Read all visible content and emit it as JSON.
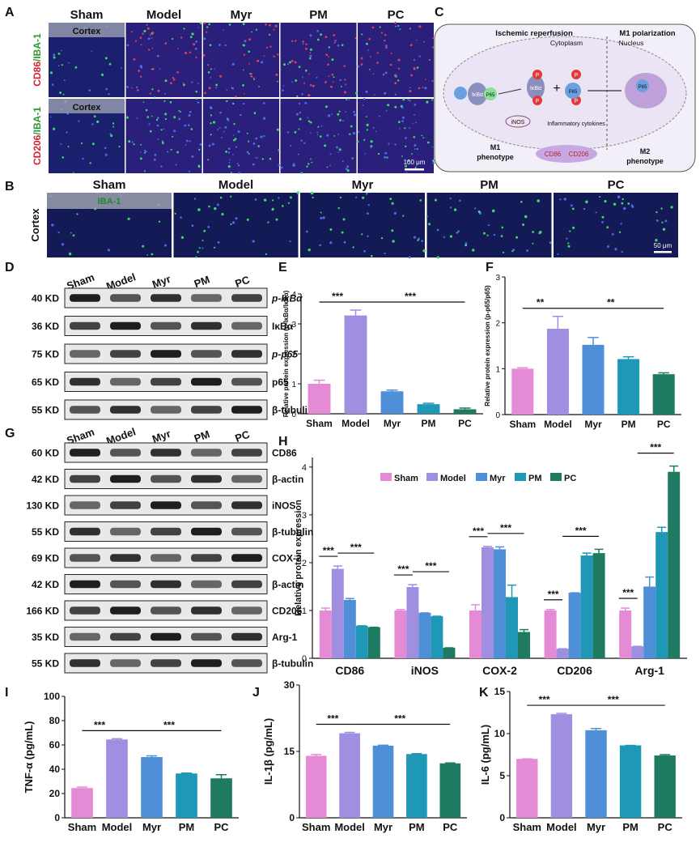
{
  "panel_letters": [
    "A",
    "B",
    "C",
    "D",
    "E",
    "F",
    "G",
    "H",
    "I",
    "J",
    "K"
  ],
  "groups": [
    "Sham",
    "Model",
    "Myr",
    "PM",
    "PC"
  ],
  "colors": {
    "Sham": "#e58bd6",
    "Model": "#a08ee0",
    "Myr": "#4e8fd8",
    "PM": "#1f98b8",
    "PC": "#1f7a62",
    "sig": "#111111"
  },
  "panelA": {
    "row_labels": [
      {
        "a": "CD86",
        "b": "/IBA-1"
      },
      {
        "a": "CD206",
        "b": "/IBA-1"
      }
    ],
    "region": "Cortex",
    "scale": "100 μm"
  },
  "panelB": {
    "row_label": "Cortex",
    "stain": "IBA-1",
    "scale": "50 μm"
  },
  "panelC": {
    "header_left": "Ischemic reperfusion",
    "header_right": "M1 polarization",
    "sub_left": "Cytoplasm",
    "sub_right": "Nucleus",
    "nodes": {
      "ikba": "IκBα",
      "p65": "P65",
      "p": "P",
      "rnos": "iNOS",
      "cyto": "Inflammatory cytokines",
      "cd86": "CD86",
      "cd206": "CD206",
      "plus": "+"
    },
    "m1": "M1 phenotype",
    "m2": "M2 phenotype"
  },
  "panelD": {
    "lanes": [
      "Sham",
      "Model",
      "Myr",
      "PM",
      "PC"
    ],
    "rows": [
      {
        "kd": "40 KD",
        "name": "p-IκBα"
      },
      {
        "kd": "36 KD",
        "name": "IκBα"
      },
      {
        "kd": "75 KD",
        "name": "p-p65"
      },
      {
        "kd": "65 KD",
        "name": "p65"
      },
      {
        "kd": "55 KD",
        "name": "β-tubulin"
      }
    ]
  },
  "panelG": {
    "lanes": [
      "Sham",
      "Model",
      "Myr",
      "PM",
      "PC"
    ],
    "rows": [
      {
        "kd": "60 KD",
        "name": "CD86"
      },
      {
        "kd": "42 KD",
        "name": "β-actin"
      },
      {
        "kd": "130 KD",
        "name": "iNOS"
      },
      {
        "kd": "55 KD",
        "name": "β-tubulin"
      },
      {
        "kd": "69 KD",
        "name": "COX-2"
      },
      {
        "kd": "42 KD",
        "name": "β-actin"
      },
      {
        "kd": "166 KD",
        "name": "CD206"
      },
      {
        "kd": "35 KD",
        "name": "Arg-1"
      },
      {
        "kd": "55 KD",
        "name": "β-tubulin"
      }
    ]
  },
  "chart_data": [
    {
      "panel": "E",
      "type": "bar",
      "categories": [
        "Sham",
        "Model",
        "Myr",
        "PM",
        "PC"
      ],
      "values": [
        1.0,
        3.28,
        0.75,
        0.32,
        0.15
      ],
      "errors": [
        0.12,
        0.18,
        0.04,
        0.03,
        0.04
      ],
      "ylabel": "Relative protein expression (p-IκBα/IκBα)",
      "ylim": [
        0,
        4
      ],
      "yticks": [
        0,
        1,
        2,
        3,
        4
      ],
      "sig": [
        {
          "from": 0,
          "to": 1,
          "text": "***"
        },
        {
          "from": 1,
          "to": 4,
          "text": "***"
        }
      ]
    },
    {
      "panel": "F",
      "type": "bar",
      "categories": [
        "Sham",
        "Model",
        "Myr",
        "PM",
        "PC"
      ],
      "values": [
        1.0,
        1.87,
        1.52,
        1.21,
        0.88
      ],
      "errors": [
        0.02,
        0.27,
        0.16,
        0.05,
        0.03
      ],
      "ylabel": "Relative protein expression (p-p65/p65)",
      "ylim": [
        0,
        3
      ],
      "yticks": [
        0,
        1,
        2,
        3
      ],
      "sig": [
        {
          "from": 0,
          "to": 1,
          "text": "**"
        },
        {
          "from": 1,
          "to": 4,
          "text": "**"
        }
      ]
    },
    {
      "panel": "H",
      "type": "bar",
      "categories": [
        "CD86",
        "iNOS",
        "COX-2",
        "CD206",
        "Arg-1"
      ],
      "ylabel": "Relative protein expression",
      "ylim": [
        0,
        4.2
      ],
      "yticks": [
        0,
        1,
        2,
        3,
        4
      ],
      "series": [
        {
          "name": "Sham",
          "values": [
            1.0,
            1.0,
            1.0,
            1.0,
            1.0
          ],
          "errors": [
            0.05,
            0.02,
            0.12,
            0.02,
            0.05
          ]
        },
        {
          "name": "Model",
          "values": [
            1.87,
            1.49,
            2.32,
            0.2,
            0.25
          ],
          "errors": [
            0.06,
            0.05,
            0.02,
            0.0,
            0.0
          ]
        },
        {
          "name": "Myr",
          "values": [
            1.22,
            0.95,
            2.28,
            1.37,
            1.5
          ],
          "errors": [
            0.03,
            0.0,
            0.05,
            0.0,
            0.2
          ]
        },
        {
          "name": "PM",
          "values": [
            0.68,
            0.88,
            1.28,
            2.15,
            2.64
          ],
          "errors": [
            0.0,
            0.0,
            0.25,
            0.05,
            0.1
          ]
        },
        {
          "name": "PC",
          "values": [
            0.65,
            0.22,
            0.55,
            2.2,
            3.9
          ],
          "errors": [
            0.0,
            0.0,
            0.05,
            0.08,
            0.12
          ]
        }
      ],
      "sig": [
        {
          "cat": 0,
          "pairs": [
            [
              0,
              1
            ],
            [
              1,
              4
            ]
          ]
        },
        {
          "cat": 1,
          "pairs": [
            [
              0,
              1
            ],
            [
              1,
              4
            ]
          ]
        },
        {
          "cat": 2,
          "pairs": [
            [
              0,
              1
            ],
            [
              1,
              4
            ]
          ]
        },
        {
          "cat": 3,
          "pairs": [
            [
              0,
              0
            ],
            [
              1,
              4
            ]
          ]
        },
        {
          "cat": 4,
          "pairs": [
            [
              0,
              0
            ],
            [
              1,
              4
            ]
          ]
        }
      ],
      "sig_text": "***"
    },
    {
      "panel": "I",
      "type": "bar",
      "categories": [
        "Sham",
        "Model",
        "Myr",
        "PM",
        "PC"
      ],
      "values": [
        24.5,
        64.5,
        50.0,
        36.5,
        32.5
      ],
      "errors": [
        0.8,
        0.6,
        1.0,
        0.3,
        3.0
      ],
      "ylabel": "TNF-α (pg/mL)",
      "ylim": [
        0,
        100
      ],
      "yticks": [
        0,
        20,
        40,
        60,
        80,
        100
      ],
      "sig": [
        {
          "from": 0,
          "to": 1,
          "text": "***"
        },
        {
          "from": 1,
          "to": 4,
          "text": "***"
        }
      ]
    },
    {
      "panel": "J",
      "type": "bar",
      "categories": [
        "Sham",
        "Model",
        "Myr",
        "PM",
        "PC"
      ],
      "values": [
        14.0,
        19.1,
        16.3,
        14.4,
        12.3
      ],
      "errors": [
        0.3,
        0.2,
        0.1,
        0.1,
        0.1
      ],
      "ylabel": "IL-1β (pg/mL)",
      "ylim": [
        0,
        30
      ],
      "yticks": [
        0,
        15,
        30
      ],
      "sig": [
        {
          "from": 0,
          "to": 1,
          "text": "***"
        },
        {
          "from": 1,
          "to": 4,
          "text": "***"
        }
      ]
    },
    {
      "panel": "K",
      "type": "bar",
      "categories": [
        "Sham",
        "Model",
        "Myr",
        "PM",
        "PC"
      ],
      "values": [
        7.0,
        12.3,
        10.4,
        8.6,
        7.4
      ],
      "errors": [
        0.0,
        0.1,
        0.2,
        0.0,
        0.1
      ],
      "ylabel": "IL-6 (pg/mL)",
      "ylim": [
        0,
        15
      ],
      "yticks": [
        0,
        5,
        10,
        15
      ],
      "sig": [
        {
          "from": 0,
          "to": 1,
          "text": "***"
        },
        {
          "from": 1,
          "to": 4,
          "text": "***"
        }
      ]
    }
  ]
}
